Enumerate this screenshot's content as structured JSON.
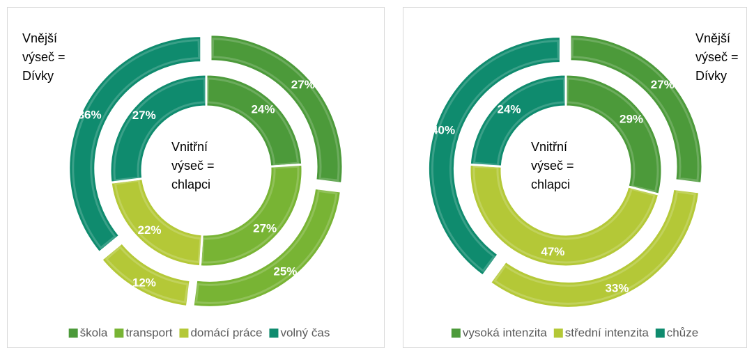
{
  "chart_data": [
    {
      "type": "doughnut",
      "categories": [
        "škola",
        "transport",
        "domácí práce",
        "volný čas"
      ],
      "colors": [
        "#4c9a3a",
        "#78b434",
        "#b4c837",
        "#0f8b6e"
      ],
      "series": [
        {
          "ring": "inner",
          "values": [
            24,
            27,
            22,
            27
          ],
          "value_labels": [
            "24%",
            "27%",
            "22%",
            "27%"
          ]
        },
        {
          "ring": "outer",
          "values": [
            27,
            25,
            12,
            36
          ],
          "value_labels": [
            "27%",
            "25%",
            "12%",
            "36%"
          ]
        }
      ],
      "annotations": [
        "Vnější výseč = Dívky",
        "Vnitřní výseč = chlapci"
      ],
      "legend": "bottom"
    },
    {
      "type": "doughnut",
      "categories": [
        "vysoká intenzita",
        "střední intenzita",
        "chůze"
      ],
      "colors": [
        "#4c9a3a",
        "#b4c837",
        "#0f8b6e"
      ],
      "series": [
        {
          "ring": "inner",
          "values": [
            29,
            47,
            24
          ],
          "value_labels": [
            "29%",
            "47%",
            "24%"
          ]
        },
        {
          "ring": "outer",
          "values": [
            27,
            33,
            40
          ],
          "value_labels": [
            "27%",
            "33%",
            "40%"
          ]
        }
      ],
      "annotations": [
        "Vnější výseč = Dívky",
        "Vnitřní výseč = chlapci"
      ],
      "legend": "bottom"
    }
  ]
}
